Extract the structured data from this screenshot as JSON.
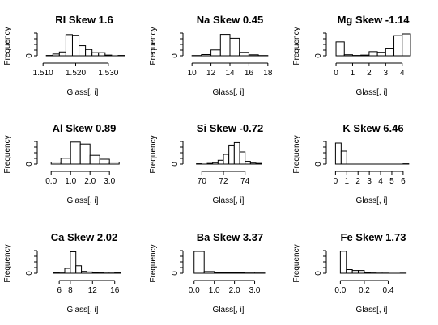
{
  "chart_data": [
    {
      "type": "bar",
      "title": "RI Skew 1.6",
      "xlabel": "Glass[, i]",
      "ylabel": "Frequency",
      "bin_edges": [
        1.511,
        1.513,
        1.515,
        1.517,
        1.519,
        1.521,
        1.523,
        1.525,
        1.527,
        1.529,
        1.531,
        1.533,
        1.535
      ],
      "counts": [
        1,
        5,
        11,
        61,
        59,
        29,
        18,
        9,
        9,
        2,
        0,
        1
      ],
      "xlim": [
        1.5107,
        1.5345
      ],
      "xticks": [
        "1.510",
        "1.520",
        "1.530"
      ],
      "xtick_values": [
        1.51,
        1.52,
        1.53
      ],
      "yticks": [
        "0"
      ],
      "ymax": 70
    },
    {
      "type": "bar",
      "title": "Na Skew 0.45",
      "xlabel": "Glass[, i]",
      "ylabel": "Frequency",
      "bin_edges": [
        10,
        11,
        12,
        13,
        14,
        15,
        16,
        17,
        18
      ],
      "counts": [
        1,
        5,
        24,
        88,
        72,
        14,
        4,
        1
      ],
      "xlim": [
        9.9,
        18.1
      ],
      "xticks": [
        "10",
        "12",
        "14",
        "16",
        "18"
      ],
      "xtick_values": [
        10,
        12,
        14,
        16,
        18
      ],
      "yticks": [
        "0"
      ],
      "ymax": 100
    },
    {
      "type": "bar",
      "title": "Mg Skew -1.14",
      "xlabel": "Glass[, i]",
      "ylabel": "Frequency",
      "bin_edges": [
        0,
        0.5,
        1,
        1.5,
        2,
        2.5,
        3,
        3.5,
        4,
        4.5
      ],
      "counts": [
        40,
        3,
        1,
        2,
        12,
        10,
        22,
        58,
        63
      ],
      "xlim": [
        -0.1,
        4.6
      ],
      "xticks": [
        "0",
        "1",
        "2",
        "3",
        "4"
      ],
      "xtick_values": [
        0,
        1,
        2,
        3,
        4
      ],
      "yticks": [
        "0"
      ],
      "ymax": 70
    },
    {
      "type": "bar",
      "title": "Al Skew 0.89",
      "xlabel": "Glass[, i]",
      "ylabel": "Frequency",
      "bin_edges": [
        0,
        0.5,
        1,
        1.5,
        2,
        2.5,
        3,
        3.5
      ],
      "counts": [
        6,
        18,
        68,
        62,
        27,
        15,
        6
      ],
      "xlim": [
        -0.3,
        3.7
      ],
      "xticks": [
        "0.0",
        "1.0",
        "2.0",
        "3.0"
      ],
      "xtick_values": [
        0,
        1,
        2,
        3
      ],
      "yticks": [
        "0"
      ],
      "ymax": 75
    },
    {
      "type": "bar",
      "title": "Si Skew -0.72",
      "xlabel": "Glass[, i]",
      "ylabel": "Frequency",
      "bin_edges": [
        69.5,
        70,
        70.5,
        71,
        71.5,
        72,
        72.5,
        73,
        73.5,
        74,
        74.5,
        75,
        75.5
      ],
      "counts": [
        1,
        0,
        2,
        4,
        11,
        28,
        55,
        62,
        35,
        8,
        3,
        2
      ],
      "xlim": [
        69,
        76.2
      ],
      "xticks": [
        "70",
        "72",
        "74"
      ],
      "xtick_values": [
        70,
        72,
        74
      ],
      "yticks": [
        "0"
      ],
      "ymax": 70
    },
    {
      "type": "bar",
      "title": "K Skew 6.46",
      "xlabel": "Glass[, i]",
      "ylabel": "Frequency",
      "bin_edges": [
        0,
        0.5,
        1,
        1.5,
        2,
        2.5,
        3,
        3.5,
        4,
        4.5,
        5,
        5.5,
        6,
        6.5
      ],
      "counts": [
        130,
        80,
        0,
        0,
        0,
        0,
        0,
        0,
        0,
        0,
        0,
        0,
        2
      ],
      "xlim": [
        -0.1,
        6.8
      ],
      "xticks": [
        "0",
        "1",
        "2",
        "3",
        "4",
        "5",
        "6"
      ],
      "xtick_values": [
        0,
        1,
        2,
        3,
        4,
        5,
        6
      ],
      "yticks": [
        "0"
      ],
      "ymax": 150
    },
    {
      "type": "bar",
      "title": "Ca Skew 2.02",
      "xlabel": "Glass[, i]",
      "ylabel": "Frequency",
      "bin_edges": [
        5,
        6,
        7,
        8,
        9,
        10,
        11,
        12,
        13,
        14,
        15,
        16,
        17
      ],
      "counts": [
        2,
        5,
        26,
        115,
        40,
        10,
        7,
        3,
        2,
        1,
        1,
        2
      ],
      "xlim": [
        3.5,
        17.5
      ],
      "xticks": [
        "6",
        "8",
        "12",
        "16"
      ],
      "xtick_values": [
        6,
        8,
        12,
        16
      ],
      "yticks": [
        "0"
      ],
      "ymax": 130
    },
    {
      "type": "bar",
      "title": "Ba Skew 3.37",
      "xlabel": "Glass[, i]",
      "ylabel": "Frequency",
      "bin_edges": [
        0,
        0.5,
        1,
        1.5,
        2,
        2.5,
        3,
        3.5
      ],
      "counts": [
        180,
        14,
        6,
        6,
        4,
        2,
        2
      ],
      "xlim": [
        -0.15,
        3.7
      ],
      "xticks": [
        "0.0",
        "1.0",
        "2.0",
        "3.0"
      ],
      "xtick_values": [
        0,
        1,
        2,
        3
      ],
      "yticks": [
        "0"
      ],
      "ymax": 200
    },
    {
      "type": "bar",
      "title": "Fe Skew 1.73",
      "xlabel": "Glass[, i]",
      "ylabel": "Frequency",
      "bin_edges": [
        0,
        0.05,
        0.1,
        0.15,
        0.2,
        0.25,
        0.3,
        0.35,
        0.4,
        0.45,
        0.5,
        0.55
      ],
      "counts": [
        145,
        24,
        18,
        18,
        4,
        2,
        1,
        1,
        0,
        0,
        1
      ],
      "xlim": [
        -0.05,
        0.6
      ],
      "xticks": [
        "0.0",
        "0.2",
        "0.4"
      ],
      "xtick_values": [
        0,
        0.2,
        0.4
      ],
      "yticks": [
        "0"
      ],
      "ymax": 160
    }
  ]
}
